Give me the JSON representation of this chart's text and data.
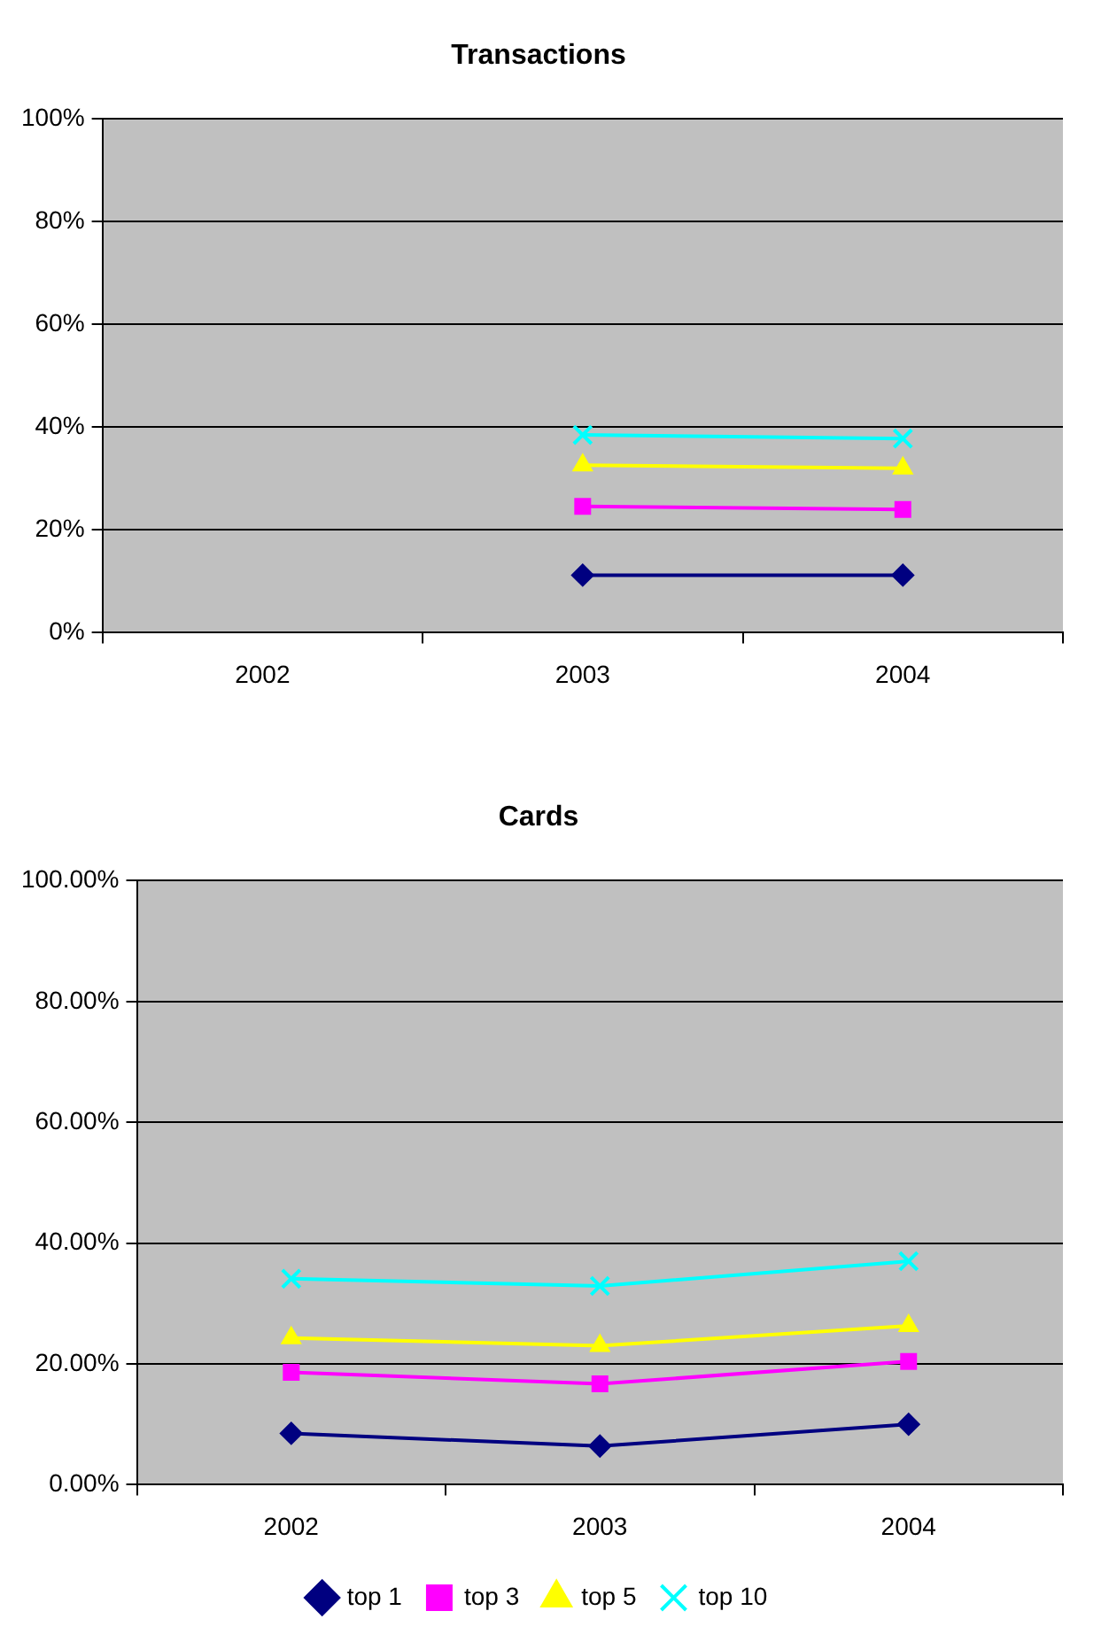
{
  "chart_data": [
    {
      "type": "line",
      "title": "Transactions",
      "categories": [
        "2002",
        "2003",
        "2004"
      ],
      "series": [
        {
          "color": "#000080",
          "marker": "diamond",
          "values": [
            null,
            11.2,
            11.2
          ]
        },
        {
          "color": "#ff00ff",
          "marker": "square",
          "values": [
            null,
            24.6,
            24.0
          ]
        },
        {
          "color": "#ffff00",
          "marker": "triangle",
          "values": [
            null,
            32.6,
            32.0
          ]
        },
        {
          "color": "#00ffff",
          "marker": "cross",
          "values": [
            null,
            38.5,
            37.8
          ]
        }
      ],
      "ylim": [
        0,
        100
      ],
      "yticks": [
        {
          "value": 0,
          "label": "0%"
        },
        {
          "value": 20,
          "label": "20%"
        },
        {
          "value": 40,
          "label": "40%"
        },
        {
          "value": 60,
          "label": "60%"
        },
        {
          "value": 80,
          "label": "80%"
        },
        {
          "value": 100,
          "label": "100%"
        }
      ],
      "grid": "y",
      "legend": false
    },
    {
      "type": "line",
      "title": "Cards",
      "categories": [
        "2002",
        "2003",
        "2004"
      ],
      "series": [
        {
          "name": "top 1",
          "color": "#000080",
          "marker": "diamond",
          "values": [
            8.5,
            6.4,
            10.0
          ]
        },
        {
          "name": "top 3",
          "color": "#ff00ff",
          "marker": "square",
          "values": [
            18.6,
            16.7,
            20.4
          ]
        },
        {
          "name": "top 5",
          "color": "#ffff00",
          "marker": "triangle",
          "values": [
            24.3,
            23.0,
            26.3
          ]
        },
        {
          "name": "top 10",
          "color": "#00ffff",
          "marker": "cross",
          "values": [
            34.1,
            32.9,
            37.0
          ]
        }
      ],
      "ylim": [
        0,
        100
      ],
      "yticks": [
        {
          "value": 0,
          "label": "0.00%"
        },
        {
          "value": 20,
          "label": "20.00%"
        },
        {
          "value": 40,
          "label": "40.00%"
        },
        {
          "value": 60,
          "label": "60.00%"
        },
        {
          "value": 80,
          "label": "80.00%"
        },
        {
          "value": 100,
          "label": "100.00%"
        }
      ],
      "grid": "y",
      "legend": "bottom"
    }
  ]
}
